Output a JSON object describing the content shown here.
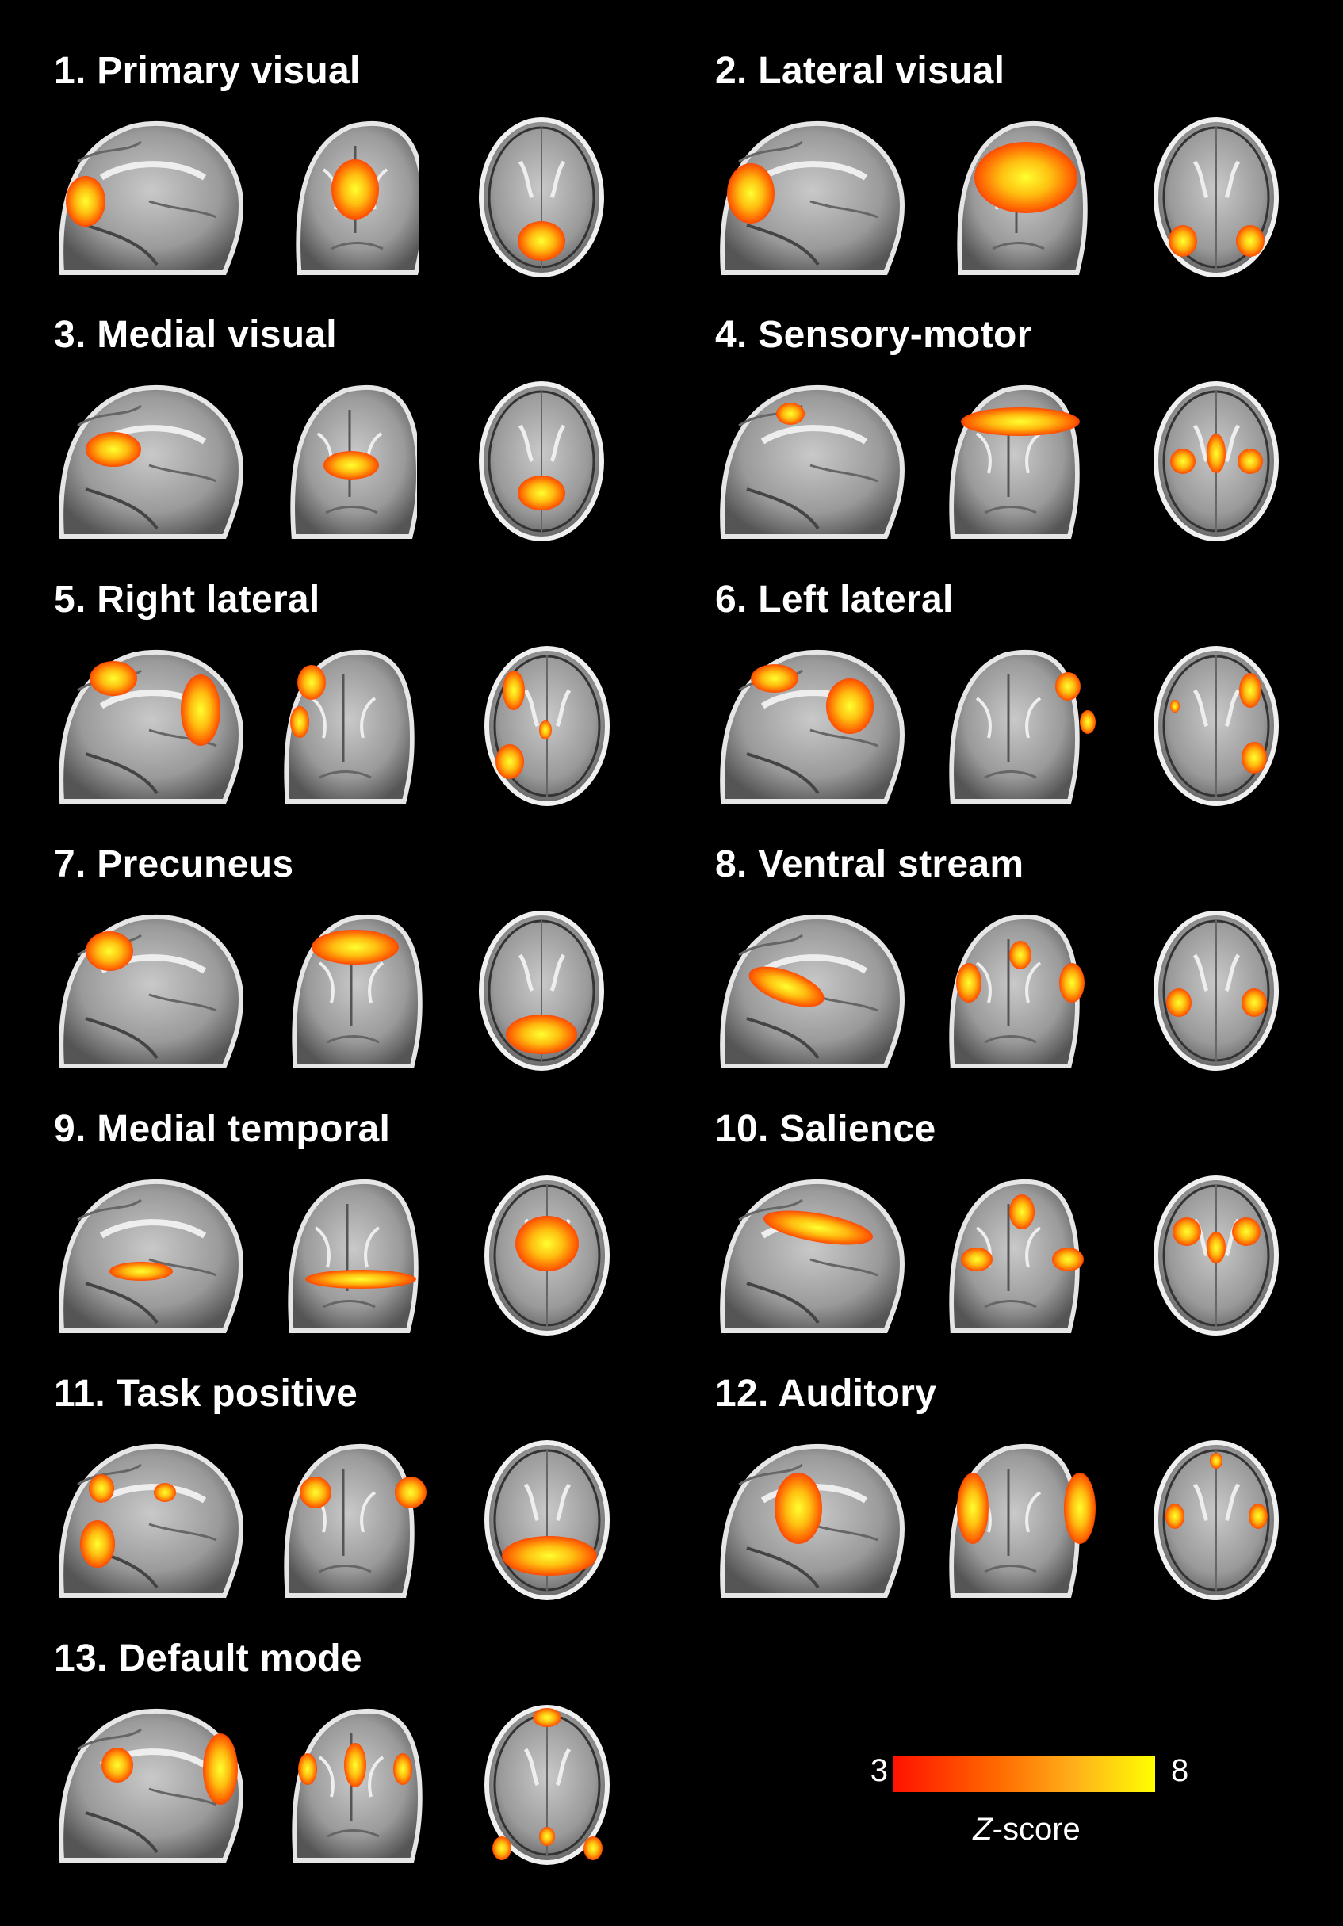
{
  "networks": [
    {
      "label": "1. Primary visual"
    },
    {
      "label": "2. Lateral visual"
    },
    {
      "label": "3. Medial visual"
    },
    {
      "label": "4. Sensory-motor"
    },
    {
      "label": "5. Right lateral"
    },
    {
      "label": "6. Left lateral"
    },
    {
      "label": "7. Precuneus"
    },
    {
      "label": "8. Ventral stream"
    },
    {
      "label": "9. Medial temporal"
    },
    {
      "label": "10. Salience"
    },
    {
      "label": "11. Task positive"
    },
    {
      "label": "12. Auditory"
    },
    {
      "label": "13. Default mode"
    }
  ],
  "colorbar": {
    "min": "3",
    "max": "8",
    "label_italic": "Z",
    "label_rest": "-score",
    "colors": [
      "#ff1200",
      "#ff6a00",
      "#ffb21a",
      "#ffff00"
    ]
  }
}
